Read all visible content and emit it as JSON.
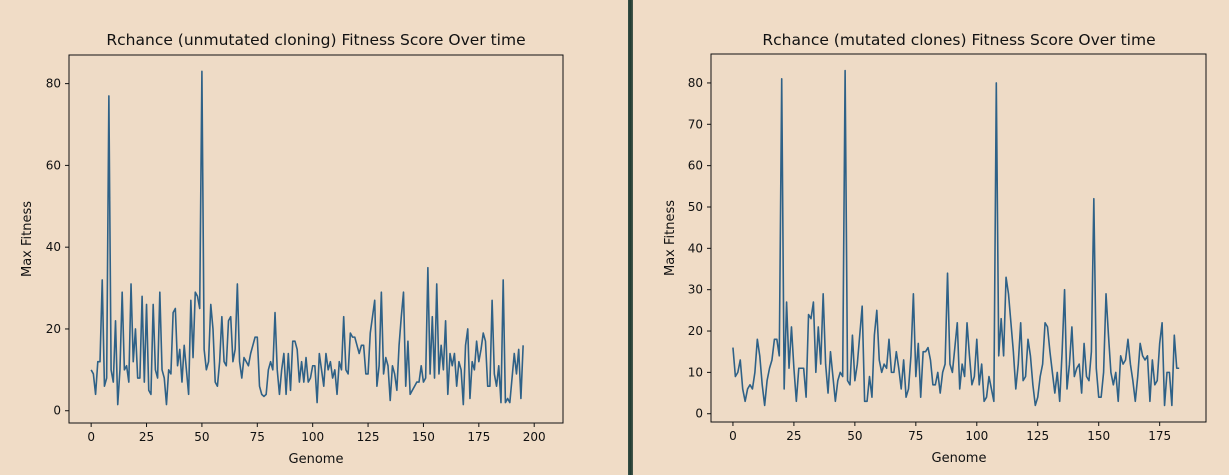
{
  "colors": {
    "background": "#f0dcc6",
    "plot_bg": "#eedbc6",
    "line": "#2e6187",
    "divider": "#1f3a30"
  },
  "chart_data": [
    {
      "type": "line",
      "title": "Rchance (unmutated cloning) Fitness Score Over time",
      "xlabel": "Genome",
      "ylabel": "Max Fitness",
      "xlim": [
        -10,
        213
      ],
      "ylim": [
        -3,
        87
      ],
      "xticks": [
        0,
        25,
        50,
        75,
        100,
        125,
        150,
        175,
        200
      ],
      "yticks": [
        0,
        20,
        40,
        60,
        80
      ],
      "grid": false,
      "series": [
        {
          "values": [
            10,
            9,
            4,
            12,
            12,
            32,
            6,
            8,
            77,
            10,
            7,
            22,
            1.5,
            10,
            29,
            10,
            11,
            7,
            31,
            12,
            20,
            8,
            8,
            28,
            7,
            26,
            5,
            4,
            26,
            10,
            8,
            29,
            10,
            8,
            1.5,
            10,
            9,
            24,
            25,
            11,
            15,
            7,
            16,
            10,
            4,
            27,
            13,
            29,
            28,
            25,
            83,
            15,
            10,
            12,
            26,
            20,
            7,
            6,
            12,
            23,
            12,
            11,
            22,
            23,
            12,
            15,
            31,
            12,
            8,
            13,
            12,
            11,
            14,
            16,
            18,
            18,
            6,
            4,
            3.5,
            4,
            10,
            12,
            10,
            24,
            10,
            4,
            10,
            14,
            4,
            14,
            5,
            17,
            17,
            15,
            7,
            12,
            7,
            13,
            7,
            8,
            11,
            11,
            2,
            14,
            10,
            6,
            14,
            10,
            12,
            8,
            10,
            4,
            12,
            10,
            23,
            10,
            9,
            19,
            18,
            18,
            16,
            14,
            16,
            16,
            9,
            9,
            19,
            23,
            27,
            6,
            11,
            29,
            9,
            13,
            11,
            2.5,
            11,
            9,
            5,
            16,
            23,
            29,
            6,
            17,
            4,
            5,
            6,
            7,
            7,
            11,
            7,
            8,
            35,
            9,
            23,
            8,
            31,
            9,
            16,
            10,
            22,
            4,
            14,
            11,
            14,
            6,
            12,
            10,
            1.5,
            16,
            20,
            3,
            12,
            10,
            17,
            12,
            15,
            19,
            17,
            6,
            6,
            27,
            9,
            6,
            11,
            2,
            32,
            2,
            3,
            2,
            8,
            14,
            9,
            15,
            3,
            16
          ]
        }
      ]
    },
    {
      "type": "line",
      "title": "Rchance (mutated clones) Fitness Score Over time",
      "xlabel": "Genome",
      "ylabel": "Max Fitness",
      "xlim": [
        -9,
        194
      ],
      "ylim": [
        -2,
        87
      ],
      "xticks": [
        0,
        25,
        50,
        75,
        100,
        125,
        150,
        175
      ],
      "yticks": [
        0,
        10,
        20,
        30,
        40,
        50,
        60,
        70,
        80
      ],
      "grid": false,
      "series": [
        {
          "values": [
            16,
            9,
            10,
            13,
            6,
            3,
            6,
            7,
            6,
            10,
            18,
            14,
            7,
            2,
            8,
            11,
            13,
            18,
            18,
            14,
            81,
            6,
            27,
            11,
            21,
            11,
            3,
            11,
            11,
            11,
            4,
            24,
            23,
            27,
            10,
            21,
            12,
            29,
            12,
            5,
            15,
            9,
            3,
            8,
            10,
            9,
            83,
            8,
            7,
            19,
            8,
            12,
            19,
            26,
            3,
            3,
            9,
            4,
            19,
            25,
            13,
            10,
            12,
            11,
            18,
            10,
            10,
            15,
            11,
            6,
            13,
            4,
            6,
            14,
            29,
            9,
            17,
            4,
            15,
            15,
            16,
            13,
            7,
            7,
            10,
            5,
            10,
            12,
            34,
            12,
            10,
            16,
            22,
            6,
            12,
            9,
            22,
            14,
            7,
            9,
            18,
            7,
            12,
            3,
            4,
            9,
            6,
            3,
            80,
            14,
            23,
            14,
            33,
            29,
            22,
            15,
            6,
            12,
            22,
            8,
            9,
            18,
            14,
            7,
            2,
            4,
            9,
            12,
            22,
            21,
            15,
            10,
            5,
            10,
            3,
            15,
            30,
            6,
            12,
            21,
            9,
            11,
            12,
            5,
            17,
            9,
            8,
            15,
            52,
            11,
            4,
            4,
            10,
            29,
            19,
            10,
            7,
            10,
            3,
            14,
            12,
            13,
            18,
            12,
            8,
            3,
            9,
            17,
            14,
            13,
            14,
            3,
            13,
            7,
            8,
            17,
            22,
            2,
            10,
            10,
            2,
            19,
            11,
            11
          ]
        }
      ]
    }
  ]
}
